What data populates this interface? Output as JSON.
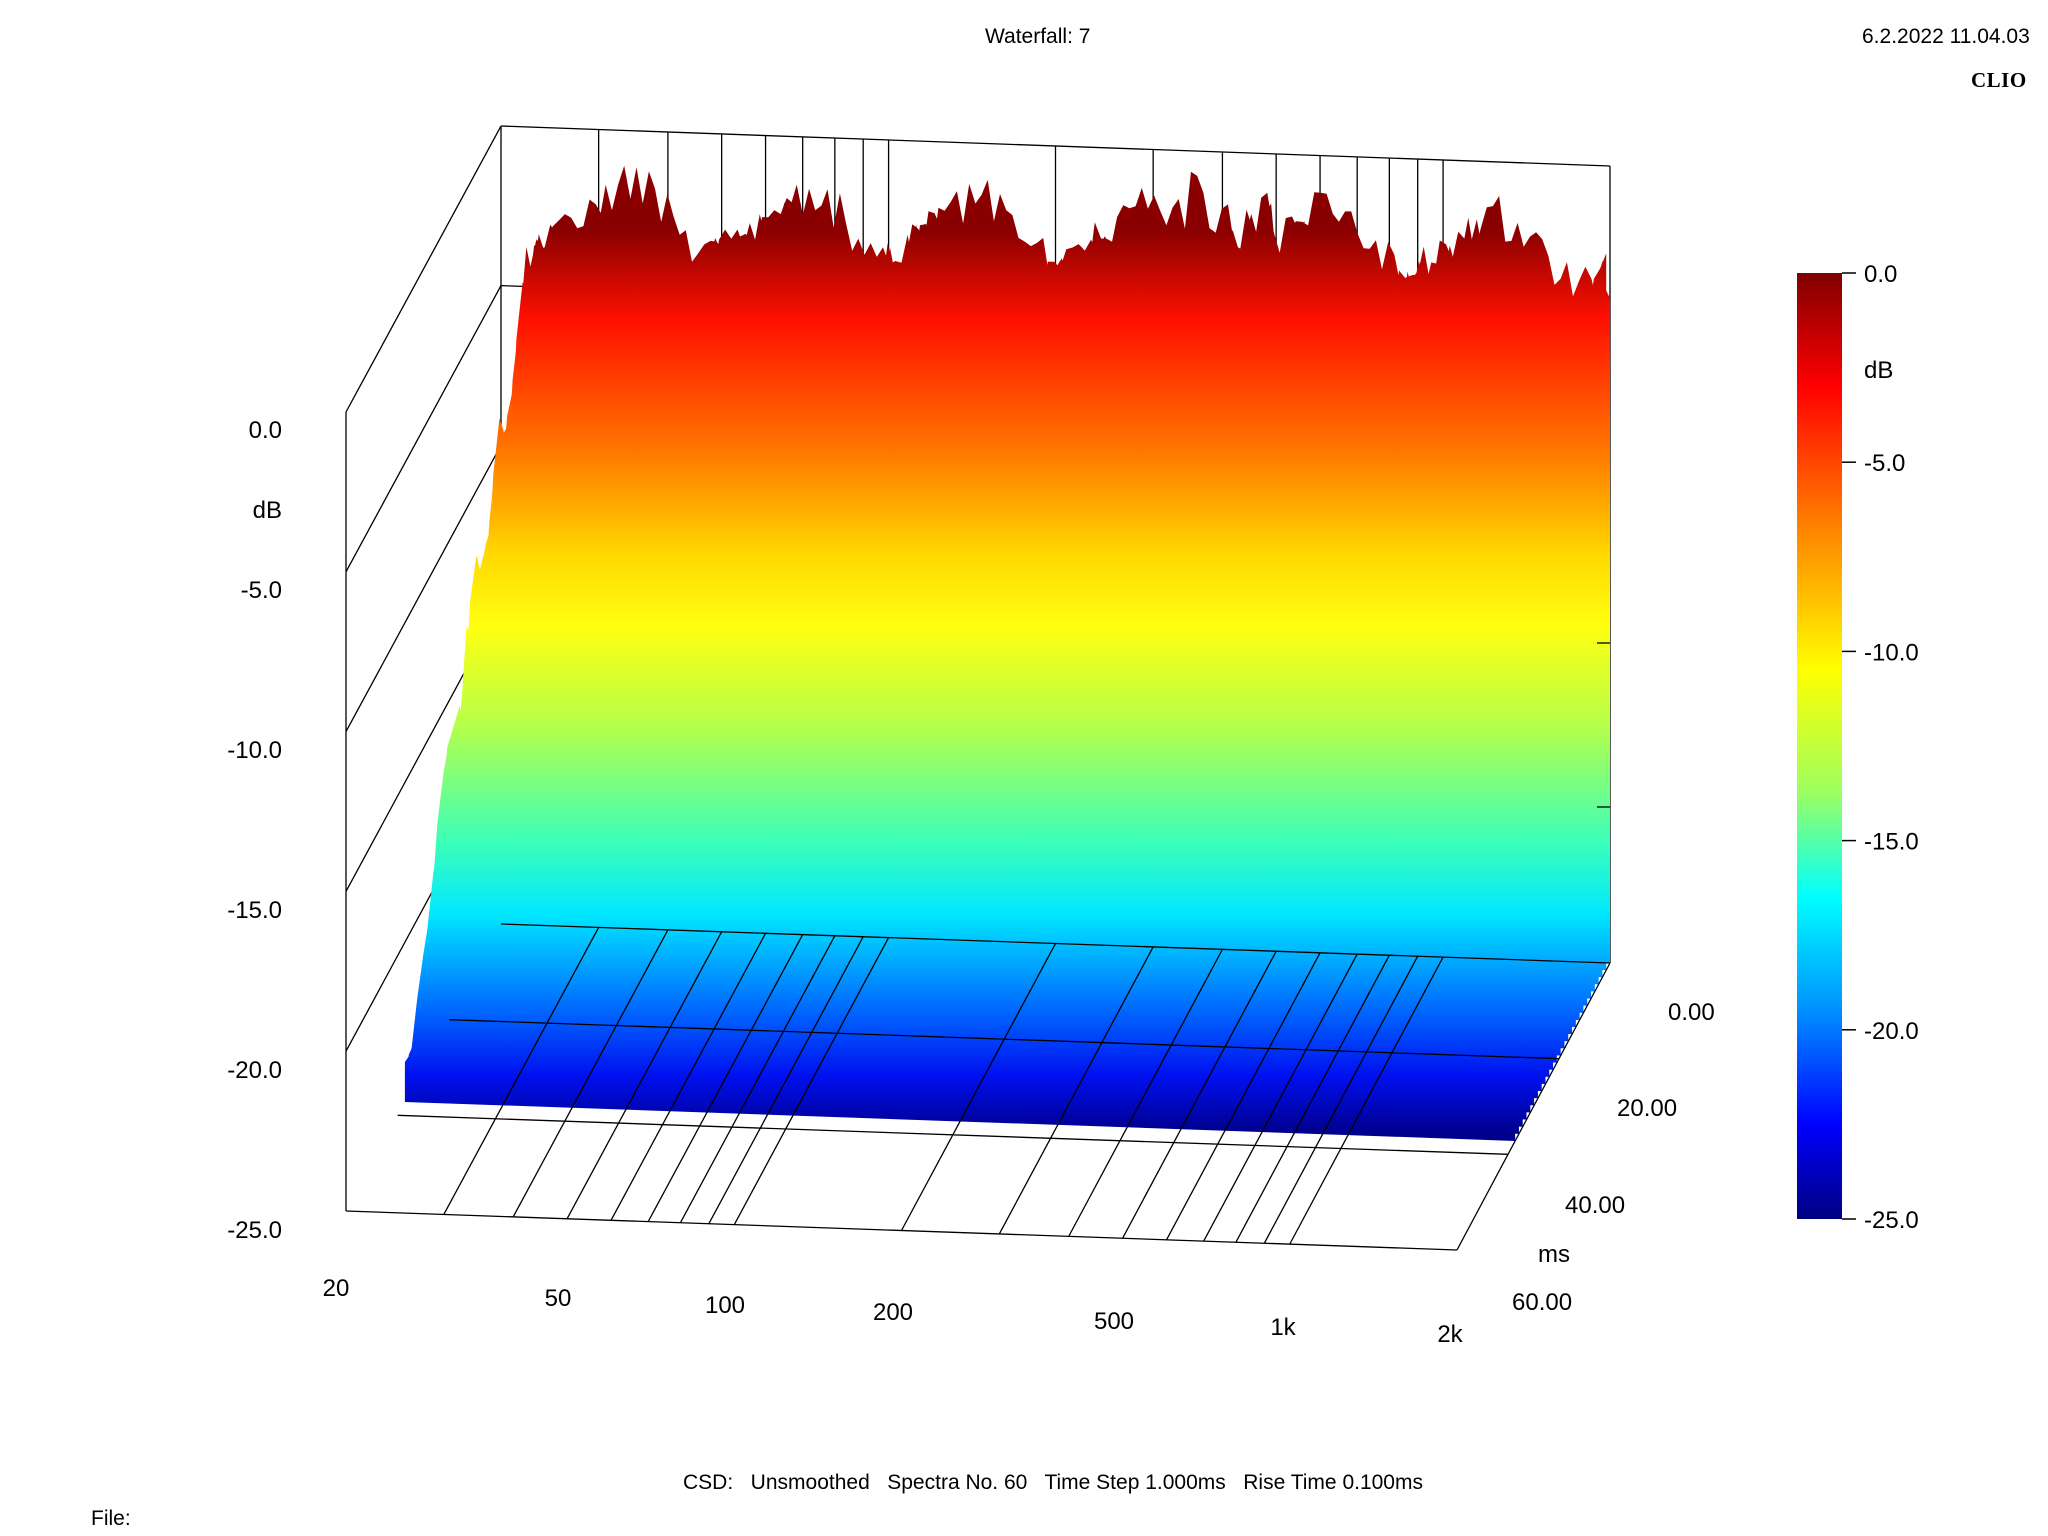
{
  "header": {
    "title": "Waterfall: 7",
    "datetime": "6.2.2022 11.04.03",
    "brand": "CLIO"
  },
  "footer": {
    "settings": "CSD:   Unsmoothed   Spectra No. 60   Time Step 1.000ms   Rise Time 0.100ms",
    "file_label": "File:"
  },
  "chart_data": {
    "type": "waterfall",
    "title": "Waterfall: 7",
    "method": "CSD",
    "smoothing": "Unsmoothed",
    "spectra_count": 60,
    "time_step_ms": 1.0,
    "rise_time_ms": 0.1,
    "x_axis": {
      "scale": "log",
      "range": [
        20,
        2000
      ],
      "ticks": [
        "20",
        "50",
        "100",
        "200",
        "500",
        "1k",
        "2k"
      ]
    },
    "z_axis": {
      "label": "ms",
      "range": [
        0,
        60
      ],
      "ticks": [
        "0.00",
        "20.00",
        "40.00",
        "60.00"
      ]
    },
    "y_axis": {
      "label": "dB",
      "range": [
        -25,
        0
      ],
      "ticks": [
        "0.0",
        "-5.0",
        "-10.0",
        "-15.0",
        "-20.0",
        "-25.0"
      ]
    },
    "colorbar": {
      "label": "dB",
      "range": [
        -25,
        0
      ],
      "ticks": [
        "0.0",
        "-5.0",
        "-10.0",
        "-15.0",
        "-20.0",
        "-25.0"
      ],
      "colors": [
        "#800000",
        "#ff0000",
        "#ff8000",
        "#ffff00",
        "#80ff80",
        "#00ffff",
        "#0080ff",
        "#0000ff",
        "#000080"
      ]
    },
    "grid": true
  }
}
